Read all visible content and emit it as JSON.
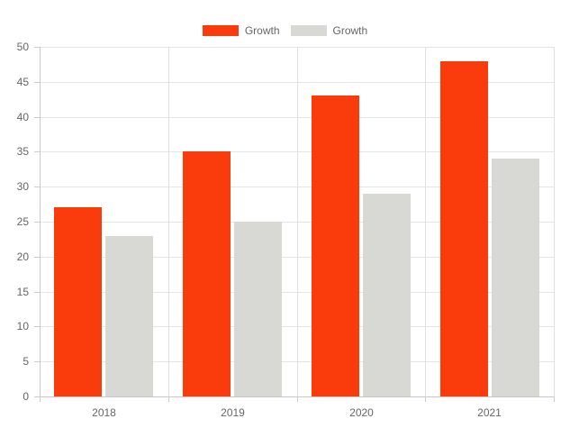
{
  "chart_data": {
    "type": "bar",
    "title": "",
    "xlabel": "",
    "ylabel": "",
    "categories": [
      "2018",
      "2019",
      "2020",
      "2021"
    ],
    "series": [
      {
        "name": "Growth",
        "color": "#fa3c0d",
        "values": [
          27,
          35,
          43,
          48
        ]
      },
      {
        "name": "Growth",
        "color": "#d8d8d5",
        "values": [
          23,
          25,
          29,
          34
        ]
      }
    ],
    "ylim": [
      0,
      50
    ],
    "yticks": [
      0,
      5,
      10,
      15,
      20,
      25,
      30,
      35,
      40,
      45,
      50
    ],
    "grid": true,
    "legend_position": "top-center"
  },
  "colors": {
    "background": "#ffffff",
    "grid_horizontal": "#e6e6e6",
    "grid_vertical": "#e0e0e0",
    "axis_line": "#c9c9c9",
    "tick_text": "#666666",
    "legend_text": "#666666"
  }
}
